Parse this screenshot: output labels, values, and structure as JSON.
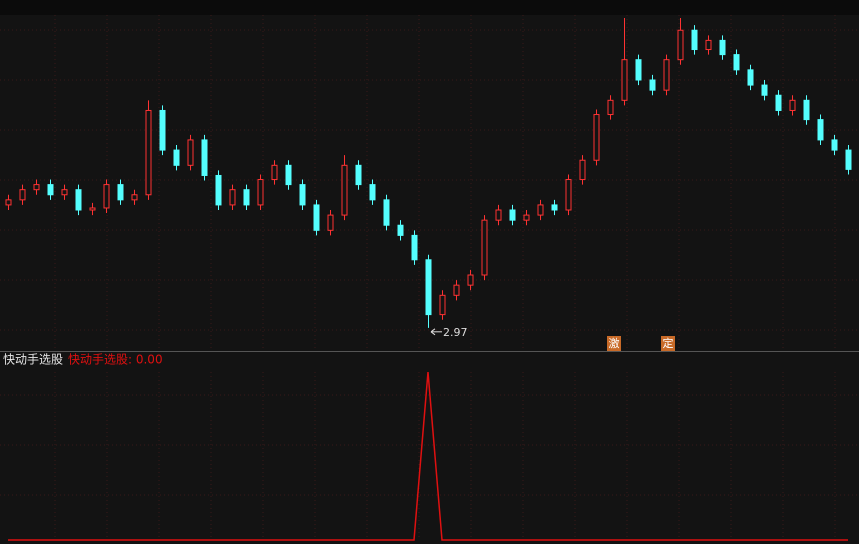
{
  "chart_data": {
    "type": "candlestick",
    "ylim": [
      2.85,
      6.05
    ],
    "open": [
      4.18,
      4.23,
      4.33,
      4.38,
      4.28,
      4.33,
      4.13,
      4.15,
      4.38,
      4.23,
      4.28,
      5.11,
      4.72,
      4.57,
      4.82,
      4.47,
      4.18,
      4.33,
      4.18,
      4.43,
      4.57,
      4.38,
      4.18,
      3.93,
      4.08,
      4.57,
      4.38,
      4.23,
      3.98,
      3.88,
      3.64,
      3.1,
      3.29,
      3.39,
      3.49,
      4.03,
      4.13,
      4.03,
      4.08,
      4.18,
      4.13,
      4.43,
      4.62,
      5.07,
      5.21,
      5.61,
      5.41,
      5.31,
      5.61,
      5.9,
      5.71,
      5.8,
      5.66,
      5.51,
      5.36,
      5.26,
      5.11,
      5.21,
      5.02,
      4.82,
      4.72
    ],
    "high": [
      4.28,
      4.38,
      4.43,
      4.43,
      4.38,
      4.38,
      4.2,
      4.43,
      4.43,
      4.33,
      5.21,
      5.16,
      4.77,
      4.87,
      4.87,
      4.52,
      4.38,
      4.38,
      4.48,
      4.62,
      4.62,
      4.43,
      4.23,
      4.13,
      4.67,
      4.62,
      4.43,
      4.28,
      4.03,
      3.93,
      3.69,
      3.34,
      3.44,
      3.54,
      4.08,
      4.18,
      4.18,
      4.13,
      4.23,
      4.23,
      4.48,
      4.67,
      5.12,
      5.26,
      6.02,
      5.66,
      5.46,
      5.66,
      6.02,
      5.95,
      5.85,
      5.85,
      5.71,
      5.56,
      5.41,
      5.31,
      5.26,
      5.26,
      5.07,
      4.87,
      4.77
    ],
    "low": [
      4.13,
      4.18,
      4.28,
      4.23,
      4.23,
      4.08,
      4.08,
      4.1,
      4.18,
      4.18,
      4.23,
      4.67,
      4.52,
      4.52,
      4.42,
      4.13,
      4.13,
      4.13,
      4.13,
      4.38,
      4.33,
      4.13,
      3.88,
      3.88,
      4.03,
      4.33,
      4.18,
      3.93,
      3.83,
      3.59,
      2.97,
      3.05,
      3.24,
      3.34,
      3.44,
      3.98,
      3.98,
      3.98,
      4.03,
      4.08,
      4.08,
      4.38,
      4.57,
      5.02,
      5.16,
      5.36,
      5.26,
      5.26,
      5.56,
      5.66,
      5.66,
      5.61,
      5.46,
      5.31,
      5.21,
      5.06,
      5.06,
      4.97,
      4.77,
      4.67,
      4.48
    ],
    "close": [
      4.23,
      4.33,
      4.38,
      4.28,
      4.33,
      4.13,
      4.15,
      4.38,
      4.23,
      4.28,
      5.11,
      4.72,
      4.57,
      4.82,
      4.47,
      4.18,
      4.33,
      4.18,
      4.43,
      4.57,
      4.38,
      4.18,
      3.93,
      4.08,
      4.57,
      4.38,
      4.23,
      3.98,
      3.88,
      3.64,
      3.1,
      3.29,
      3.39,
      3.49,
      4.03,
      4.13,
      4.03,
      4.08,
      4.18,
      4.13,
      4.43,
      4.62,
      5.07,
      5.21,
      5.61,
      5.41,
      5.31,
      5.61,
      5.9,
      5.71,
      5.8,
      5.66,
      5.51,
      5.36,
      5.26,
      5.11,
      5.21,
      5.02,
      4.82,
      4.72,
      4.53
    ],
    "up_color": "#ff3232",
    "down_color": "#54ffff",
    "indicator": {
      "title": "快动手选股",
      "reading": "快动手选股: 0.00",
      "color": "#e01010",
      "ylim": [
        0,
        1
      ],
      "values": [
        0,
        0,
        0,
        0,
        0,
        0,
        0,
        0,
        0,
        0,
        0,
        0,
        0,
        0,
        0,
        0,
        0,
        0,
        0,
        0,
        0,
        0,
        0,
        0,
        0,
        0,
        0,
        0,
        0,
        0,
        1,
        0,
        0,
        0,
        0,
        0,
        0,
        0,
        0,
        0,
        0,
        0,
        0,
        0,
        0,
        0,
        0,
        0,
        0,
        0,
        0,
        0,
        0,
        0,
        0,
        0,
        0,
        0,
        0,
        0,
        0
      ]
    },
    "badges": [
      "激",
      "定"
    ]
  }
}
